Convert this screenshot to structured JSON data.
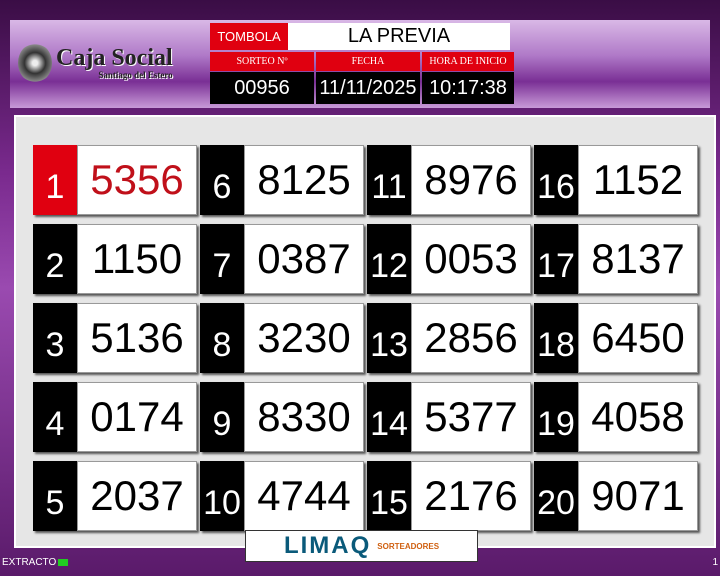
{
  "logo": {
    "line1": "Caja Social",
    "line2": "Santiago del Estero"
  },
  "header": {
    "game_label": "TOMBOLA",
    "game_name": "LA PREVIA",
    "draw_label": "SORTEO Nº",
    "date_label": "FECHA",
    "time_label": "HORA DE INICIO",
    "draw_number": "00956",
    "date": "11/11/2025",
    "start_time": "10:17:38"
  },
  "results": [
    {
      "pos": "1",
      "num": "5356"
    },
    {
      "pos": "2",
      "num": "1150"
    },
    {
      "pos": "3",
      "num": "5136"
    },
    {
      "pos": "4",
      "num": "0174"
    },
    {
      "pos": "5",
      "num": "2037"
    },
    {
      "pos": "6",
      "num": "8125"
    },
    {
      "pos": "7",
      "num": "0387"
    },
    {
      "pos": "8",
      "num": "3230"
    },
    {
      "pos": "9",
      "num": "8330"
    },
    {
      "pos": "10",
      "num": "4744"
    },
    {
      "pos": "11",
      "num": "8976"
    },
    {
      "pos": "12",
      "num": "0053"
    },
    {
      "pos": "13",
      "num": "2856"
    },
    {
      "pos": "14",
      "num": "5377"
    },
    {
      "pos": "15",
      "num": "2176"
    },
    {
      "pos": "16",
      "num": "1152"
    },
    {
      "pos": "17",
      "num": "8137"
    },
    {
      "pos": "18",
      "num": "6450"
    },
    {
      "pos": "19",
      "num": "4058"
    },
    {
      "pos": "20",
      "num": "9071"
    }
  ],
  "sponsor": {
    "name": "LIMAQ",
    "tagline": "SORTEADORES"
  },
  "status": {
    "label": "EXTRACTO",
    "page": "1"
  },
  "colors": {
    "accent_red": "#e00010",
    "frame_purple": "#7a2a8e",
    "highlight_number": "#c0101a"
  }
}
